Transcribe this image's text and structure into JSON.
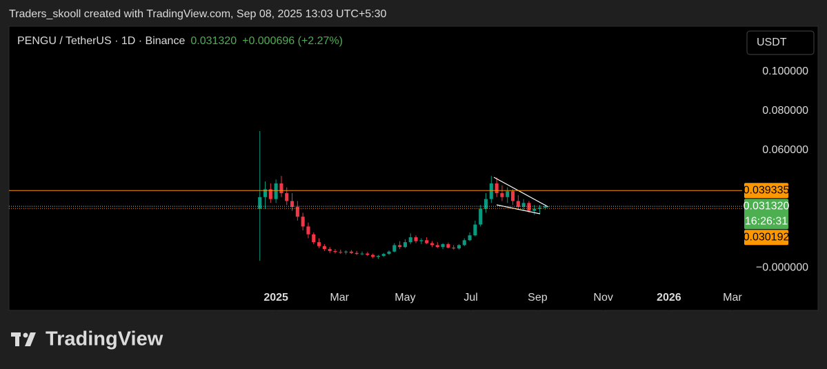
{
  "header": "Traders_skooll created with TradingView.com, Sep 08, 2025 13:03 UTC+5:30",
  "chart_data": {
    "type": "candlestick",
    "symbol": "PENGU / TetherUS · 1D · Binance",
    "last": "0.031320",
    "change": "+0.000696 (+2.27%)",
    "currency": "USDT",
    "x": [
      -15,
      -10,
      -5,
      0,
      5,
      10,
      15,
      20,
      25,
      30,
      35,
      40,
      45,
      50,
      55,
      60,
      65,
      70,
      75,
      80,
      85,
      90,
      95,
      100,
      105,
      110,
      115,
      120,
      125,
      130,
      135,
      140,
      145,
      150,
      155,
      160,
      165,
      170,
      175,
      180,
      185,
      190,
      195,
      200,
      205,
      210,
      215,
      220,
      225,
      230,
      235,
      240,
      245,
      250
    ],
    "open": [
      0.03,
      0.036,
      0.04,
      0.035,
      0.043,
      0.038,
      0.034,
      0.031,
      0.026,
      0.021,
      0.017,
      0.013,
      0.011,
      0.0095,
      0.0085,
      0.008,
      0.0078,
      0.0082,
      0.0075,
      0.007,
      0.0072,
      0.0065,
      0.0055,
      0.006,
      0.007,
      0.0082,
      0.0115,
      0.0105,
      0.013,
      0.0155,
      0.0135,
      0.014,
      0.0125,
      0.0115,
      0.0105,
      0.012,
      0.0102,
      0.0098,
      0.0115,
      0.014,
      0.0165,
      0.022,
      0.03,
      0.035,
      0.043,
      0.038,
      0.036,
      0.039,
      0.034,
      0.031,
      0.033,
      0.029,
      0.03,
      0.0306
    ],
    "high": [
      0.0697,
      0.044,
      0.043,
      0.045,
      0.0468,
      0.041,
      0.038,
      0.034,
      0.028,
      0.023,
      0.018,
      0.015,
      0.012,
      0.0105,
      0.0095,
      0.0092,
      0.0088,
      0.009,
      0.0085,
      0.0082,
      0.008,
      0.0072,
      0.0065,
      0.0075,
      0.0088,
      0.0125,
      0.0135,
      0.0145,
      0.0175,
      0.0165,
      0.015,
      0.0155,
      0.0135,
      0.013,
      0.0125,
      0.0128,
      0.0115,
      0.012,
      0.015,
      0.018,
      0.024,
      0.032,
      0.038,
      0.0468,
      0.046,
      0.042,
      0.041,
      0.04,
      0.037,
      0.035,
      0.034,
      0.032,
      0.032,
      0.0322
    ],
    "low": [
      0.0035,
      0.03,
      0.033,
      0.033,
      0.036,
      0.032,
      0.029,
      0.024,
      0.019,
      0.015,
      0.012,
      0.01,
      0.0085,
      0.0075,
      0.0072,
      0.007,
      0.0068,
      0.007,
      0.0065,
      0.0063,
      0.006,
      0.0048,
      0.0045,
      0.0055,
      0.0065,
      0.0078,
      0.0095,
      0.01,
      0.012,
      0.0125,
      0.012,
      0.012,
      0.0105,
      0.01,
      0.0095,
      0.0098,
      0.0092,
      0.0092,
      0.011,
      0.0135,
      0.016,
      0.021,
      0.028,
      0.033,
      0.036,
      0.034,
      0.033,
      0.032,
      0.03,
      0.029,
      0.028,
      0.027,
      0.0275,
      0.0295
    ],
    "close": [
      0.036,
      0.04,
      0.035,
      0.043,
      0.038,
      0.034,
      0.031,
      0.026,
      0.021,
      0.017,
      0.013,
      0.011,
      0.0095,
      0.0085,
      0.008,
      0.0078,
      0.0082,
      0.0075,
      0.007,
      0.0072,
      0.0065,
      0.0055,
      0.006,
      0.007,
      0.0082,
      0.0115,
      0.0105,
      0.013,
      0.0155,
      0.0135,
      0.014,
      0.0125,
      0.0115,
      0.0105,
      0.012,
      0.0102,
      0.0098,
      0.0115,
      0.014,
      0.0165,
      0.022,
      0.03,
      0.035,
      0.043,
      0.038,
      0.036,
      0.039,
      0.034,
      0.031,
      0.033,
      0.029,
      0.03,
      0.0306,
      0.03132
    ],
    "up_color": "#089981",
    "down_color": "#f23645",
    "xlim": [
      -248,
      433
    ],
    "xticks": [
      {
        "value": 0,
        "label": "2025"
      },
      {
        "value": 59,
        "label": "Mar"
      },
      {
        "value": 120,
        "label": "May"
      },
      {
        "value": 181,
        "label": "Jul"
      },
      {
        "value": 243,
        "label": "Sep"
      },
      {
        "value": 304,
        "label": "Nov"
      },
      {
        "value": 365,
        "label": "2026"
      },
      {
        "value": 424,
        "label": "Mar"
      }
    ],
    "ylim": [
      -0.0218,
      0.1225
    ],
    "yticks": [
      {
        "value": 0.1,
        "label": "0.100000"
      },
      {
        "value": 0.08,
        "label": "0.080000"
      },
      {
        "value": 0.06,
        "label": "0.060000"
      },
      {
        "value": 0,
        "label": "−0.000000"
      }
    ],
    "price_lines": [
      {
        "value": 0.039335,
        "label": "0.039335",
        "color": "#ff9800",
        "style": "solid"
      },
      {
        "value": 0.03132,
        "label": "0.031320",
        "sublabel": "16:26:31",
        "color": "#4caf50",
        "style": "dotted"
      },
      {
        "value": 0.030192,
        "label": "0.030192",
        "color": "#ff9800",
        "style": "dotted"
      }
    ]
  },
  "footer": "TradingView"
}
